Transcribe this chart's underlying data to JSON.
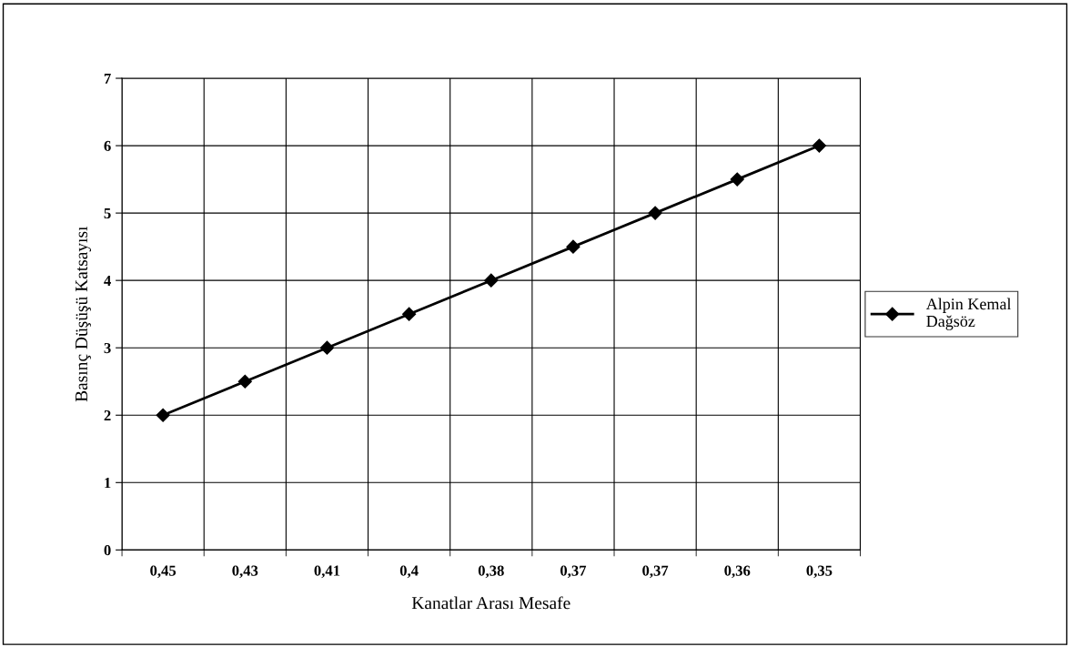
{
  "chart_data": {
    "type": "line",
    "xlabel": "Kanatlar Arası Mesafe",
    "ylabel": "Basınç Düşüşü Katsayısı",
    "categories": [
      "0,45",
      "0,43",
      "0,41",
      "0,4",
      "0,38",
      "0,37",
      "0,37",
      "0,36",
      "0,35"
    ],
    "series": [
      {
        "name": "Alpin Kemal\nDağsöz",
        "color": "#000000",
        "values": [
          2,
          2.5,
          3,
          3.5,
          4,
          4.5,
          5,
          5.5,
          6
        ]
      }
    ],
    "ylim": [
      0,
      7
    ],
    "yticks": [
      0,
      1,
      2,
      3,
      4,
      5,
      6,
      7
    ],
    "grid": true,
    "legend": "right",
    "marker": "diamond",
    "line_style": "solid"
  }
}
